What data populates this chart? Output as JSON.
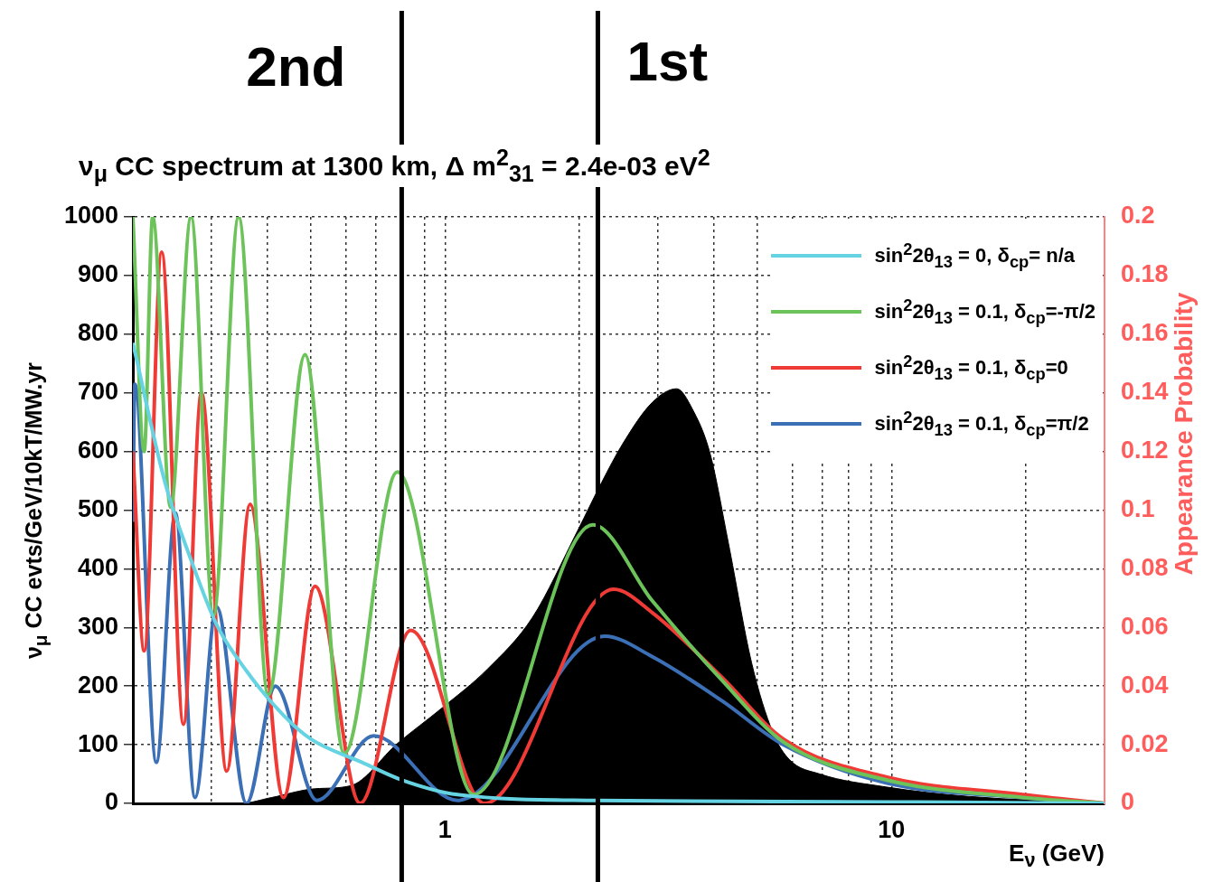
{
  "chart_data": {
    "type": "line",
    "title": "ν$_{μ}$ CC spectrum at 1300 km, Δ m$^{2}$$_{31}$ = 2.4e-03 eV$^{2}$",
    "xlabel": "E$_{ν}$ (GeV)",
    "ylabel": "ν$_{μ}$ CC evts/GeV/10kT/MW.yr",
    "y2label": "Appearance Probability",
    "log": "x",
    "grid": true,
    "legend": "top right",
    "xlim": [
      0.2,
      30
    ],
    "xticks": [
      {
        "value": 0.2,
        "label": null
      },
      {
        "value": 0.3,
        "label": null
      },
      {
        "value": 0.4,
        "label": null
      },
      {
        "value": 0.5,
        "label": null
      },
      {
        "value": 0.6,
        "label": null
      },
      {
        "value": 0.7,
        "label": null
      },
      {
        "value": 0.8,
        "label": null
      },
      {
        "value": 0.9,
        "label": null
      },
      1,
      {
        "value": 2,
        "label": null
      },
      {
        "value": 3,
        "label": null
      },
      {
        "value": 4,
        "label": null
      },
      {
        "value": 5,
        "label": null
      },
      {
        "value": 6,
        "label": null
      },
      {
        "value": 7,
        "label": null
      },
      {
        "value": 8,
        "label": null
      },
      {
        "value": 9,
        "label": null
      },
      10,
      {
        "value": 20,
        "label": null
      }
    ],
    "ylim": [
      0,
      1000
    ],
    "yticks": [
      0,
      100,
      200,
      300,
      400,
      500,
      600,
      700,
      800,
      900,
      1000
    ],
    "y2lim": [
      0,
      0.2
    ],
    "y2ticks": [
      0,
      0.02,
      0.04,
      0.06,
      0.08,
      0.1,
      0.12,
      0.14,
      0.16,
      0.18,
      0.2
    ],
    "ref_lines": [
      {
        "axis": "x",
        "value": 0.8,
        "label": "2nd",
        "color": "#000000"
      },
      {
        "axis": "x",
        "value": 2.2,
        "label": "1st",
        "color": "#000000"
      }
    ],
    "series": [
      {
        "type": "area",
        "color": "#000000",
        "x": [
          0.2,
          0.348,
          0.409,
          0.512,
          0.614,
          0.782,
          0.986,
          1.245,
          1.57,
          1.982,
          2.246,
          2.5,
          2.915,
          3.304,
          3.578,
          3.926,
          4.31,
          4.86,
          5.43,
          5.9,
          6.92,
          9.72,
          14.85,
          30
        ],
        "values": [
          0,
          0,
          10,
          25,
          30,
          102,
          163,
          229,
          317,
          465,
          548,
          613,
          684,
          707,
          673,
          596,
          445,
          240,
          120,
          75,
          50,
          28,
          12,
          0
        ]
      },
      {
        "name": "sin$^{2}$2θ$_{13}$ = 0, δ$_{cp}$= n/a",
        "color": "#66d3e3",
        "axis": "y2",
        "x": [
          0.2,
          0.2365,
          0.27,
          0.308,
          0.36,
          0.435,
          0.5,
          0.652,
          0.8,
          1.067,
          2.175,
          10,
          30
        ],
        "values": [
          0.157,
          0.109,
          0.083,
          0.061,
          0.045,
          0.03,
          0.022,
          0.014,
          0.008,
          0.003,
          0.001,
          0.0005,
          0
        ]
      },
      {
        "name": "sin$^{2}$2θ$_{13}$ = 0.1, δ$_{cp}$=-π/2",
        "color": "#6cc35a",
        "axis": "y2",
        "x": [
          0.2,
          0.212,
          0.2215,
          0.243,
          0.27,
          0.303,
          0.345,
          0.402,
          0.486,
          0.595,
          0.782,
          1.16,
          2.144,
          2.915,
          4.17,
          5.72,
          9.72,
          19.7,
          30
        ],
        "values": [
          0.2,
          0.12,
          0.2,
          0.101,
          0.2,
          0.064,
          0.2,
          0.037,
          0.153,
          0.017,
          0.113,
          0.003,
          0.095,
          0.069,
          0.042,
          0.021,
          0.008,
          0.002,
          0
        ]
      },
      {
        "name": "sin$^{2}$2θ$_{13}$ = 0.1, δ$_{cp}$=0",
        "color": "#f03a35",
        "axis": "y2",
        "x": [
          0.2,
          0.212,
          0.232,
          0.2596,
          0.2848,
          0.3245,
          0.366,
          0.4348,
          0.5117,
          0.6457,
          0.838,
          1.227,
          2.387,
          2.915,
          4.17,
          5.72,
          9.72,
          19.7,
          30
        ],
        "values": [
          0.12,
          0.052,
          0.188,
          0.027,
          0.14,
          0.011,
          0.102,
          0.002,
          0.074,
          0,
          0.059,
          0,
          0.073,
          0.065,
          0.043,
          0.022,
          0.009,
          0.003,
          0
        ]
      },
      {
        "name": "sin$^{2}$2θ$_{13}$ = 0.1, δ$_{cp}$=π/2",
        "color": "#3b6fb6",
        "axis": "y2",
        "x": [
          0.2,
          0.202,
          0.2257,
          0.249,
          0.2756,
          0.308,
          0.3593,
          0.417,
          0.5165,
          0.6924,
          1.067,
          2.279,
          2.915,
          4.17,
          5.72,
          9.72,
          19.7,
          30
        ],
        "values": [
          0.096,
          0.143,
          0.014,
          0.099,
          0.002,
          0.067,
          0,
          0.04,
          0.001,
          0.023,
          0.001,
          0.057,
          0.05,
          0.035,
          0.02,
          0.007,
          0.002,
          0
        ]
      }
    ]
  }
}
